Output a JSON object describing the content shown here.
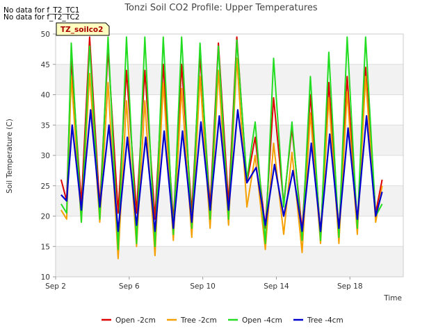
{
  "notes": [
    "No data for f_T2_TC1",
    "No data for f_T2_TC2"
  ],
  "badge": "TZ_soilco2",
  "chart_data": {
    "type": "line",
    "title": "Tonzi Soil CO2 Profile: Upper Temperatures",
    "xlabel": "Time",
    "ylabel": "Soil Temperature (C)",
    "x_unit": "days (Sep)",
    "xlim": [
      2.0,
      20.9
    ],
    "ylim": [
      10,
      50
    ],
    "yticks": [
      10,
      15,
      20,
      25,
      30,
      35,
      40,
      45,
      50
    ],
    "xticks": [
      {
        "v": 2,
        "label": "Sep 2"
      },
      {
        "v": 6,
        "label": "Sep 6"
      },
      {
        "v": 10,
        "label": "Sep 10"
      },
      {
        "v": 14,
        "label": "Sep 14"
      },
      {
        "v": 18,
        "label": "Sep 18"
      }
    ],
    "grid": "horizontal bands",
    "legend": "bottom",
    "series": [
      {
        "name": "Open -2cm",
        "color": "#dd0000",
        "x": [
          2.3,
          2.6,
          2.85,
          3.4,
          3.85,
          4.4,
          4.85,
          5.4,
          5.85,
          6.4,
          6.85,
          7.4,
          7.85,
          8.4,
          8.85,
          9.4,
          9.85,
          10.4,
          10.85,
          11.4,
          11.85,
          12.4,
          12.85,
          13.4,
          13.85,
          14.4,
          14.85,
          15.4,
          15.85,
          16.4,
          16.85,
          17.4,
          17.85,
          18.4,
          18.85,
          19.4,
          19.75
        ],
        "y": [
          26,
          22.5,
          46,
          22,
          49.5,
          21.5,
          47.5,
          20.5,
          44,
          20.5,
          44,
          19.5,
          45,
          19,
          45,
          20.5,
          46.5,
          21.5,
          48.5,
          22,
          49.5,
          25.5,
          33,
          18,
          39.5,
          22,
          34.5,
          17.5,
          40,
          17,
          42,
          17.5,
          43,
          18.5,
          44.5,
          20.5,
          26
        ]
      },
      {
        "name": "Tree -2cm",
        "color": "#f5a000",
        "x": [
          2.3,
          2.6,
          2.85,
          3.4,
          3.85,
          4.4,
          4.85,
          5.4,
          5.85,
          6.4,
          6.85,
          7.4,
          7.85,
          8.4,
          8.85,
          9.4,
          9.85,
          10.4,
          10.85,
          11.4,
          11.85,
          12.4,
          12.85,
          13.4,
          13.85,
          14.4,
          14.85,
          15.4,
          15.85,
          16.4,
          16.85,
          17.4,
          17.85,
          18.4,
          18.85,
          19.4,
          19.75
        ],
        "y": [
          21,
          19.5,
          43,
          19,
          43.5,
          19,
          42,
          13,
          39,
          15,
          39,
          13.5,
          42,
          16,
          41,
          16.5,
          43,
          18,
          44,
          18.5,
          46,
          21.5,
          30,
          14.5,
          32,
          17,
          30.5,
          14,
          37,
          15.5,
          39.5,
          15.5,
          40.5,
          17,
          43,
          19,
          25
        ]
      },
      {
        "name": "Open -4cm",
        "color": "#22dd22",
        "x": [
          2.3,
          2.6,
          2.85,
          3.4,
          3.85,
          4.4,
          4.85,
          5.4,
          5.85,
          6.4,
          6.85,
          7.4,
          7.85,
          8.4,
          8.85,
          9.4,
          9.85,
          10.4,
          10.85,
          11.4,
          11.85,
          12.4,
          12.85,
          13.4,
          13.85,
          14.4,
          14.85,
          15.4,
          15.85,
          16.4,
          16.85,
          17.4,
          17.85,
          18.4,
          18.85,
          19.4,
          19.75
        ],
        "y": [
          22,
          20.5,
          48.5,
          19,
          48,
          19.5,
          49.5,
          14.5,
          49.5,
          15.5,
          49.5,
          15,
          49.5,
          17,
          49.5,
          18,
          48.5,
          19.5,
          48,
          19.5,
          49,
          26,
          35.5,
          15.5,
          46,
          21.5,
          35.5,
          16,
          43,
          16,
          47,
          16.5,
          49.5,
          18,
          49.5,
          20,
          22
        ]
      },
      {
        "name": "Tree -4cm",
        "color": "#0000cc",
        "x": [
          2.3,
          2.6,
          2.9,
          3.4,
          3.9,
          4.4,
          4.9,
          5.4,
          5.9,
          6.4,
          6.9,
          7.4,
          7.9,
          8.4,
          8.9,
          9.4,
          9.9,
          10.4,
          10.9,
          11.4,
          11.9,
          12.4,
          12.9,
          13.4,
          13.9,
          14.4,
          14.9,
          15.4,
          15.9,
          16.4,
          16.9,
          17.4,
          17.9,
          18.4,
          18.9,
          19.4,
          19.75
        ],
        "y": [
          23.5,
          22.5,
          35,
          21,
          37.5,
          21.5,
          35,
          17.5,
          33,
          18.5,
          33,
          17.5,
          34,
          18,
          34,
          19,
          35.5,
          21,
          36.5,
          21,
          37.5,
          25.5,
          28,
          18.5,
          28.5,
          20,
          27.5,
          17.5,
          32,
          17.5,
          33.5,
          18,
          34.5,
          19.5,
          36.5,
          20,
          24
        ]
      }
    ]
  }
}
